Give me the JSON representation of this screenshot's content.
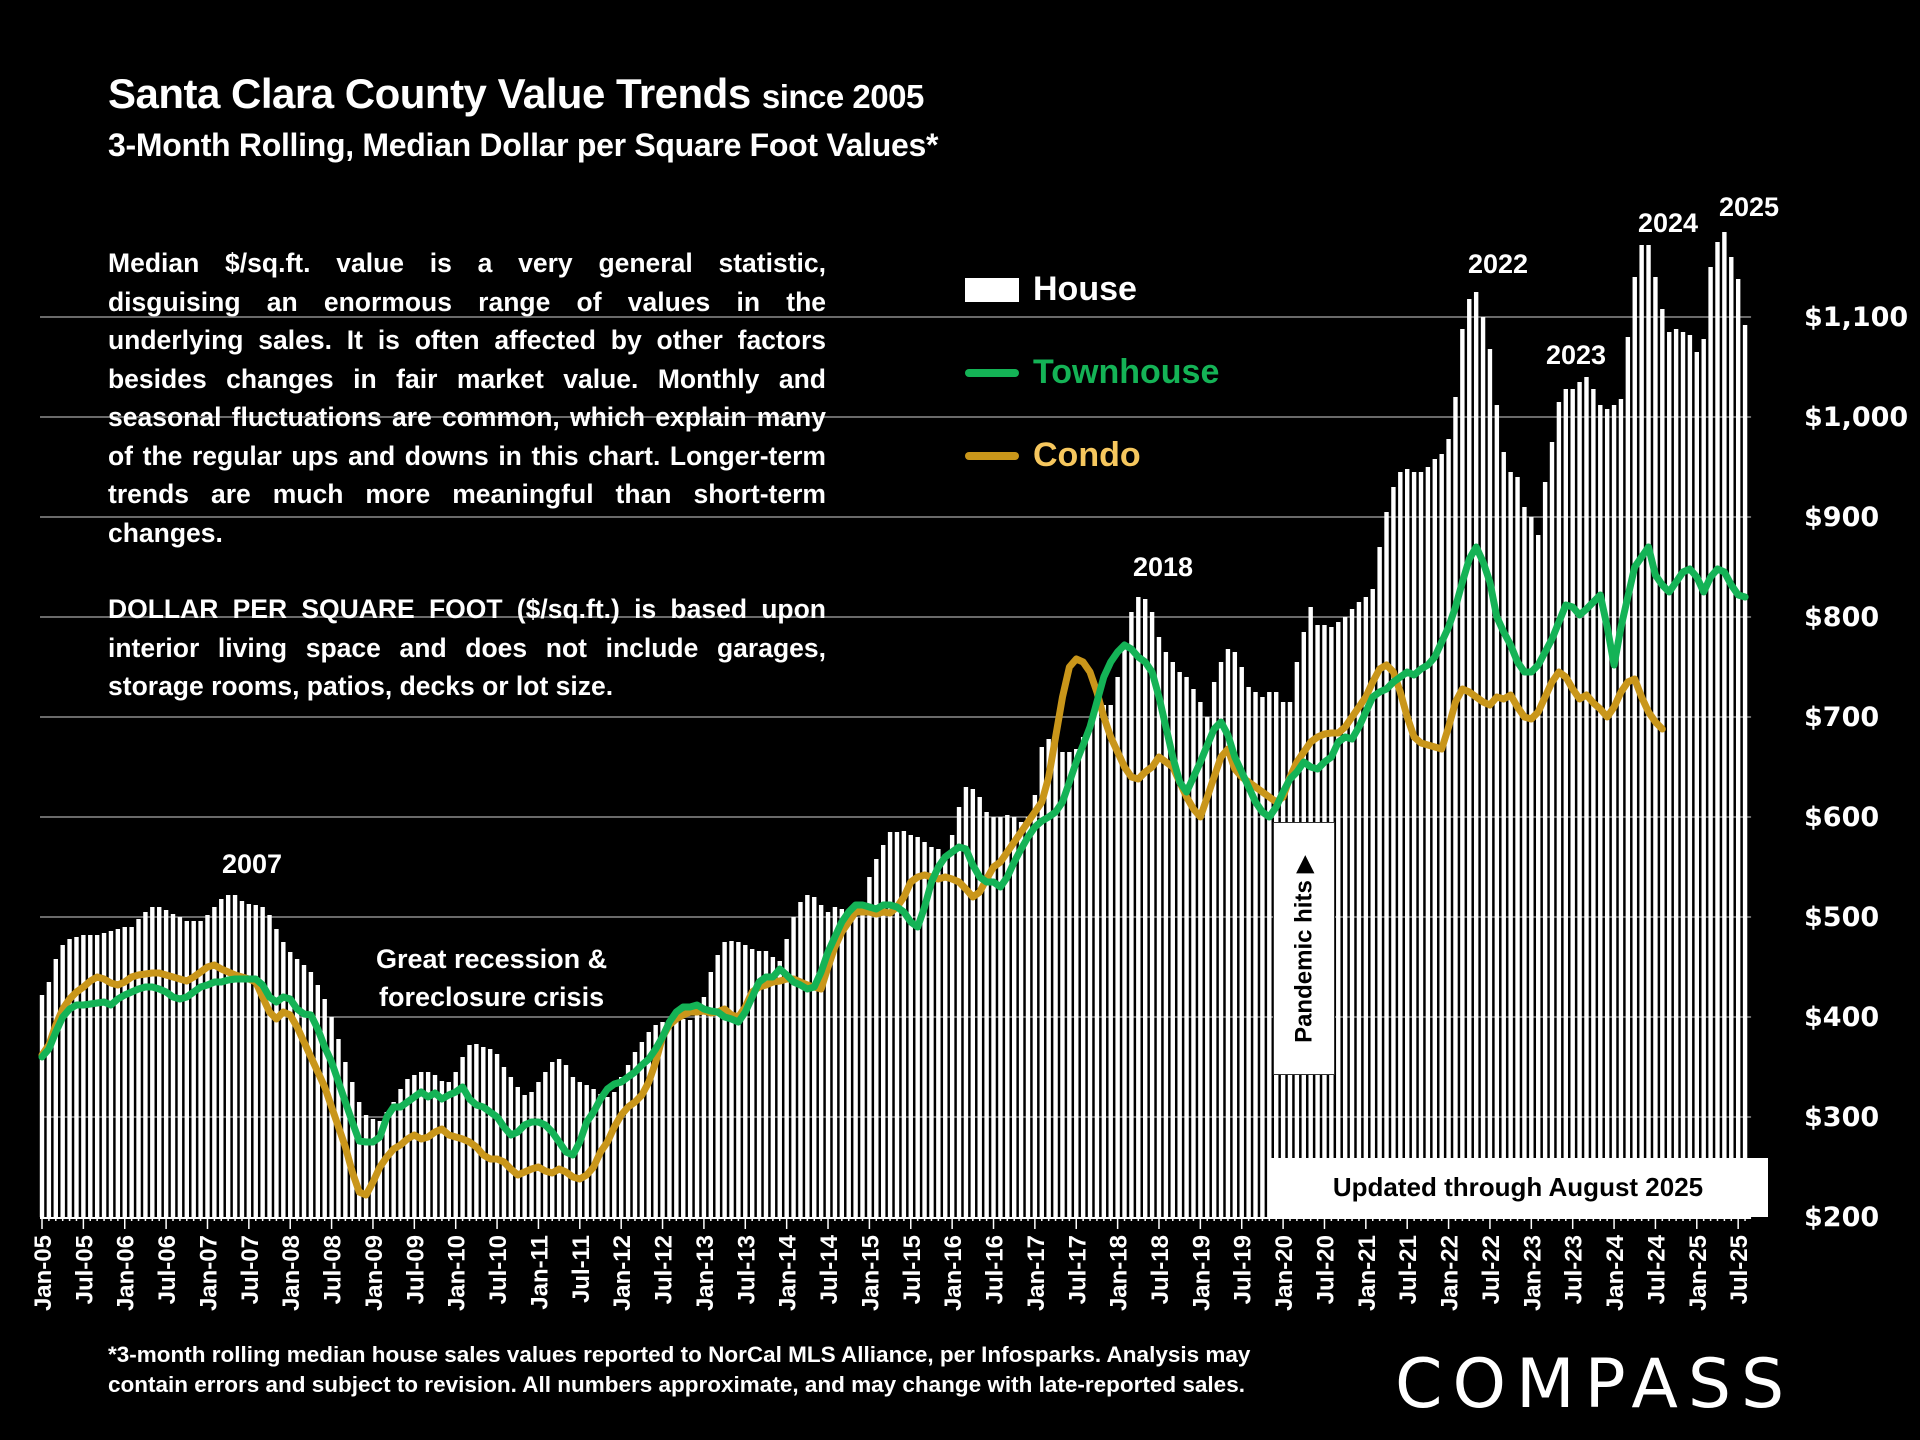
{
  "chart_data": {
    "type": "bar",
    "title": "Santa Clara County Value Trends",
    "title_suffix": "since 2005",
    "subtitle": "3-Month Rolling, Median Dollar per Square Foot Values*",
    "xlabel": "",
    "ylabel": "",
    "ylim": [
      200,
      1200
    ],
    "yticks": [
      200,
      300,
      400,
      500,
      600,
      700,
      800,
      900,
      1000,
      1100
    ],
    "ytick_labels": [
      "$200",
      "$300",
      "$400",
      "$500",
      "$600",
      "$700",
      "$800",
      "$900",
      "$1,000",
      "$1,100"
    ],
    "grid": true,
    "legend_position": "top-center",
    "x_start": "Jan-05",
    "x_end": "Aug-25",
    "xtick_labels": [
      "Jan-05",
      "Jul-05",
      "Jan-06",
      "Jul-06",
      "Jan-07",
      "Jul-07",
      "Jan-08",
      "Jul-08",
      "Jan-09",
      "Jul-09",
      "Jan-10",
      "Jul-10",
      "Jan-11",
      "Jul-11",
      "Jan-12",
      "Jul-12",
      "Jan-13",
      "Jul-13",
      "Jan-14",
      "Jul-14",
      "Jan-15",
      "Jul-15",
      "Jan-16",
      "Jul-16",
      "Jan-17",
      "Jul-17",
      "Jan-18",
      "Jul-18",
      "Jan-19",
      "Jul-19",
      "Jan-20",
      "Jul-20",
      "Jan-21",
      "Jul-21",
      "Jan-22",
      "Jul-22",
      "Jan-23",
      "Jul-23",
      "Jan-24",
      "Jul-24",
      "Jan-25",
      "Jul-25"
    ],
    "series": [
      {
        "name": "House",
        "type": "bar",
        "color": "#ffffff",
        "values": [
          422,
          435,
          458,
          472,
          478,
          480,
          482,
          482,
          482,
          484,
          486,
          488,
          490,
          490,
          498,
          505,
          510,
          510,
          507,
          503,
          500,
          496,
          496,
          496,
          502,
          510,
          518,
          522,
          522,
          516,
          513,
          512,
          510,
          502,
          488,
          475,
          465,
          458,
          452,
          445,
          432,
          418,
          400,
          378,
          355,
          335,
          315,
          302,
          298,
          296,
          305,
          315,
          328,
          338,
          342,
          345,
          345,
          342,
          336,
          335,
          345,
          360,
          372,
          373,
          370,
          368,
          363,
          350,
          340,
          330,
          322,
          325,
          335,
          345,
          355,
          358,
          352,
          340,
          335,
          332,
          328,
          323,
          320,
          325,
          340,
          352,
          365,
          375,
          385,
          392,
          395,
          397,
          397,
          398,
          397,
          405,
          420,
          445,
          462,
          475,
          476,
          475,
          472,
          468,
          466,
          466,
          460,
          456,
          478,
          500,
          515,
          522,
          520,
          512,
          505,
          510,
          508,
          505,
          500,
          510,
          540,
          558,
          572,
          585,
          585,
          586,
          582,
          580,
          575,
          570,
          568,
          562,
          582,
          610,
          630,
          628,
          620,
          605,
          600,
          600,
          602,
          600,
          595,
          600,
          622,
          670,
          678,
          678,
          665,
          665,
          668,
          680,
          690,
          710,
          712,
          712,
          740,
          770,
          805,
          820,
          818,
          805,
          780,
          765,
          755,
          745,
          740,
          728,
          715,
          700,
          735,
          755,
          768,
          765,
          750,
          730,
          725,
          720,
          725,
          725,
          715,
          715,
          755,
          785,
          810,
          792,
          792,
          790,
          795,
          800,
          808,
          815,
          820,
          828,
          870,
          905,
          930,
          945,
          948,
          945,
          945,
          950,
          958,
          963,
          978,
          1020,
          1088,
          1118,
          1125,
          1100,
          1068,
          1012,
          965,
          945,
          940,
          910,
          900,
          882,
          935,
          975,
          1015,
          1028,
          1028,
          1035,
          1040,
          1028,
          1012,
          1008,
          1012,
          1018,
          1080,
          1140,
          1172,
          1172,
          1140,
          1108,
          1085,
          1088,
          1085,
          1082,
          1065,
          1078,
          1150,
          1175,
          1185,
          1160,
          1138,
          1092
        ]
      },
      {
        "name": "Townhouse",
        "type": "line",
        "color": "#14b356",
        "values": [
          360,
          368,
          385,
          400,
          408,
          412,
          412,
          413,
          414,
          415,
          412,
          418,
          422,
          425,
          428,
          430,
          430,
          428,
          425,
          420,
          418,
          420,
          425,
          430,
          432,
          435,
          435,
          437,
          438,
          438,
          438,
          438,
          432,
          420,
          415,
          420,
          418,
          408,
          403,
          402,
          388,
          370,
          355,
          335,
          315,
          295,
          276,
          275,
          275,
          280,
          300,
          310,
          310,
          315,
          320,
          325,
          320,
          324,
          318,
          322,
          325,
          330,
          318,
          312,
          310,
          305,
          300,
          290,
          282,
          285,
          292,
          295,
          295,
          292,
          285,
          275,
          265,
          262,
          275,
          295,
          305,
          318,
          328,
          333,
          335,
          340,
          345,
          352,
          358,
          368,
          380,
          395,
          405,
          410,
          410,
          412,
          408,
          406,
          405,
          400,
          398,
          395,
          405,
          420,
          435,
          440,
          440,
          448,
          442,
          435,
          432,
          428,
          430,
          445,
          465,
          480,
          495,
          505,
          512,
          512,
          510,
          508,
          512,
          512,
          510,
          505,
          495,
          490,
          510,
          535,
          550,
          560,
          565,
          570,
          568,
          552,
          540,
          535,
          535,
          530,
          540,
          555,
          568,
          580,
          590,
          596,
          600,
          605,
          615,
          635,
          655,
          672,
          690,
          715,
          740,
          755,
          765,
          772,
          768,
          760,
          755,
          745,
          720,
          690,
          660,
          635,
          625,
          640,
          655,
          672,
          688,
          695,
          682,
          660,
          645,
          630,
          615,
          605,
          600,
          610,
          625,
          638,
          645,
          655,
          650,
          648,
          655,
          660,
          675,
          680,
          678,
          690,
          705,
          720,
          725,
          728,
          735,
          740,
          745,
          742,
          748,
          752,
          760,
          775,
          790,
          810,
          835,
          858,
          870,
          855,
          835,
          800,
          785,
          772,
          755,
          745,
          745,
          752,
          765,
          778,
          795,
          812,
          810,
          802,
          808,
          815,
          822,
          790,
          752,
          790,
          820,
          850,
          860,
          870,
          842,
          832,
          825,
          835,
          845,
          848,
          840,
          825,
          840,
          848,
          845,
          832,
          822,
          820
        ]
      },
      {
        "name": "Condo",
        "type": "line",
        "color": "#c9961a",
        "values": [
          362,
          372,
          392,
          408,
          418,
          425,
          430,
          436,
          440,
          438,
          434,
          432,
          435,
          440,
          442,
          443,
          444,
          444,
          442,
          440,
          438,
          436,
          440,
          445,
          450,
          452,
          448,
          445,
          442,
          440,
          438,
          435,
          420,
          405,
          398,
          405,
          402,
          390,
          375,
          360,
          345,
          330,
          310,
          290,
          270,
          245,
          225,
          222,
          235,
          250,
          260,
          268,
          272,
          278,
          282,
          278,
          280,
          285,
          288,
          282,
          280,
          278,
          275,
          270,
          262,
          258,
          258,
          255,
          248,
          242,
          245,
          248,
          250,
          246,
          244,
          248,
          245,
          240,
          238,
          242,
          250,
          265,
          275,
          290,
          302,
          310,
          315,
          322,
          335,
          355,
          380,
          392,
          398,
          402,
          405,
          405,
          406,
          404,
          405,
          408,
          402,
          400,
          410,
          425,
          430,
          432,
          435,
          436,
          438,
          438,
          435,
          432,
          430,
          428,
          450,
          470,
          485,
          495,
          505,
          505,
          505,
          503,
          505,
          504,
          510,
          520,
          535,
          540,
          542,
          540,
          538,
          540,
          538,
          535,
          528,
          520,
          525,
          538,
          550,
          555,
          565,
          575,
          585,
          595,
          605,
          615,
          640,
          680,
          720,
          750,
          758,
          755,
          745,
          725,
          700,
          680,
          665,
          650,
          640,
          638,
          645,
          650,
          660,
          655,
          650,
          635,
          620,
          608,
          600,
          620,
          640,
          660,
          668,
          648,
          640,
          635,
          630,
          625,
          620,
          615,
          620,
          640,
          655,
          665,
          675,
          680,
          683,
          684,
          684,
          690,
          700,
          710,
          720,
          735,
          748,
          752,
          745,
          725,
          700,
          680,
          674,
          672,
          670,
          668,
          690,
          715,
          728,
          725,
          720,
          715,
          712,
          720,
          718,
          722,
          710,
          700,
          698,
          705,
          720,
          735,
          745,
          740,
          728,
          718,
          722,
          714,
          708,
          700,
          710,
          725,
          735,
          738,
          720,
          705,
          695,
          688
        ]
      }
    ],
    "annotations": [
      {
        "text": "2007",
        "x": "Jul-07"
      },
      {
        "text": "Great recession &\nforeclosure crisis",
        "x": "Jul-10"
      },
      {
        "text": "2018",
        "x": "Apr-18"
      },
      {
        "text": "2022",
        "x": "Apr-22"
      },
      {
        "text": "2023",
        "x": "Aug-23"
      },
      {
        "text": "2024",
        "x": "May-24"
      },
      {
        "text": "2025",
        "x": "May-25"
      },
      {
        "text": "Pandemic hits ▶",
        "x": "Mar-20"
      },
      {
        "text": "Updated through August 2025",
        "x": "Aug-25"
      }
    ]
  },
  "header": {
    "title": "Santa Clara County Value Trends",
    "title_suffix": "since 2005",
    "subtitle": "3-Month Rolling, Median Dollar per Square Foot Values*"
  },
  "note": {
    "paragraph1": "Median $/sq.ft. value is a very general statistic, disguising an enormous range of values in the underlying sales. It is often affected by other factors besides changes in fair market value. Monthly and seasonal fluctuations are common, which explain many of the regular ups and downs in this chart. Longer-term trends are much more meaningful than short-term changes.",
    "paragraph2": "DOLLAR PER SQUARE FOOT ($/sq.ft.) is based upon interior living space and does not include garages, storage rooms, patios, decks or lot size."
  },
  "legend": {
    "house": "House",
    "townhouse": "Townhouse",
    "condo": "Condo",
    "townhouse_text_color": "#14b356",
    "condo_text_color": "#f6c75e"
  },
  "annotations": {
    "y2007": "2007",
    "recession_line1": "Great recession &",
    "recession_line2": "foreclosure crisis",
    "y2018": "2018",
    "y2022": "2022",
    "y2023": "2023",
    "y2024": "2024",
    "y2025": "2025",
    "pandemic": "Pandemic hits ▶",
    "updated": "Updated through August 2025"
  },
  "footer": {
    "footnote_line1": "*3-month rolling median house sales values reported to NorCal MLS Alliance, per Infosparks. Analysis may",
    "footnote_line2": "contain errors and subject to revision. All numbers approximate, and may change with late-reported sales.",
    "logo": "COMPASS"
  }
}
